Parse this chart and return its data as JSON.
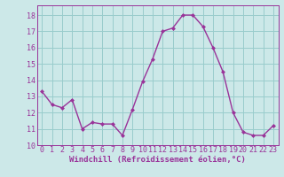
{
  "x": [
    0,
    1,
    2,
    3,
    4,
    5,
    6,
    7,
    8,
    9,
    10,
    11,
    12,
    13,
    14,
    15,
    16,
    17,
    18,
    19,
    20,
    21,
    22,
    23
  ],
  "y": [
    13.3,
    12.5,
    12.3,
    12.8,
    11.0,
    11.4,
    11.3,
    11.3,
    10.6,
    12.2,
    13.9,
    15.3,
    17.0,
    17.2,
    18.0,
    18.0,
    17.3,
    16.0,
    14.5,
    12.0,
    10.8,
    10.6,
    10.6,
    11.2
  ],
  "line_color": "#993399",
  "marker": "D",
  "marker_size": 2.0,
  "bg_color": "#cce8e8",
  "grid_color": "#99cccc",
  "xlabel": "Windchill (Refroidissement éolien,°C)",
  "xlabel_color": "#993399",
  "tick_color": "#993399",
  "ylim": [
    10,
    18.6
  ],
  "xlim": [
    -0.5,
    23.5
  ],
  "yticks": [
    10,
    11,
    12,
    13,
    14,
    15,
    16,
    17,
    18
  ],
  "xticks": [
    0,
    1,
    2,
    3,
    4,
    5,
    6,
    7,
    8,
    9,
    10,
    11,
    12,
    13,
    14,
    15,
    16,
    17,
    18,
    19,
    20,
    21,
    22,
    23
  ],
  "xlabel_fontsize": 6.5,
  "tick_fontsize": 6.0,
  "line_width": 1.0
}
